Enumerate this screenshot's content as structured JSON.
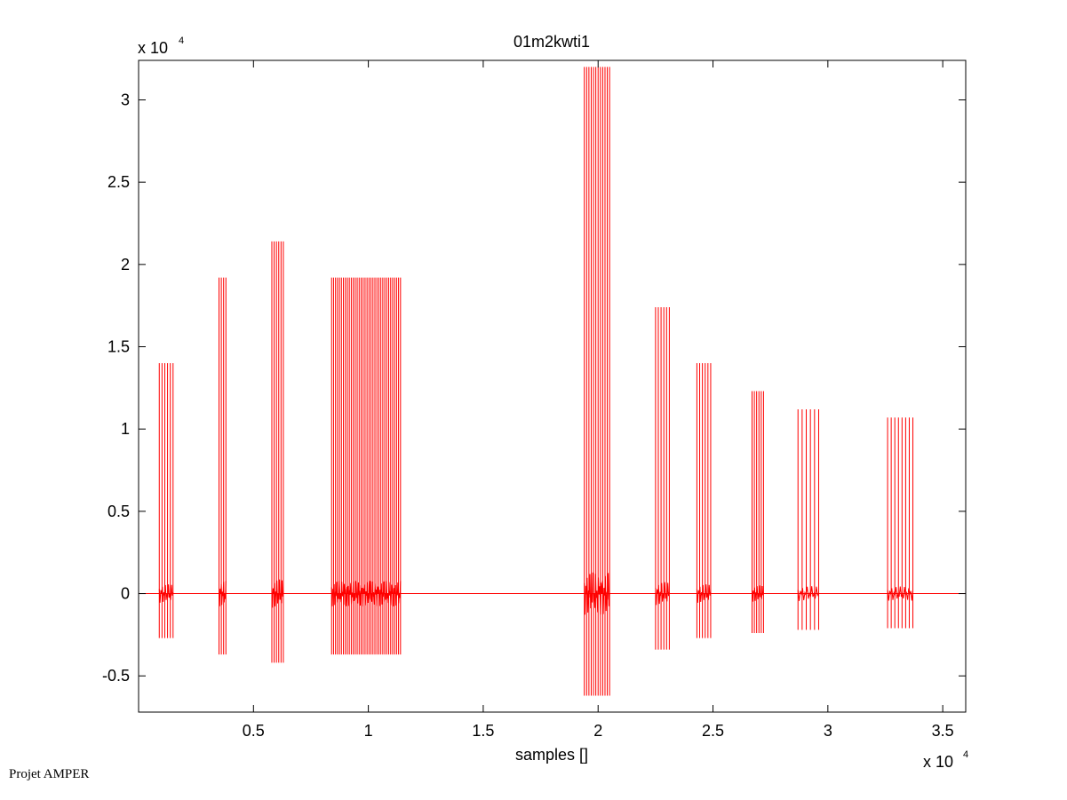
{
  "footer": "Projet AMPER",
  "chart_data": {
    "type": "line",
    "title": "01m2kwti1",
    "xlabel": "samples []",
    "ylabel": "",
    "x_exponent_label": "x 10",
    "x_exponent_power": "4",
    "y_exponent_label": "x 10",
    "y_exponent_power": "4",
    "xlim": [
      0,
      3.6
    ],
    "ylim": [
      -0.72,
      3.24
    ],
    "xticks": [
      0.5,
      1,
      1.5,
      2,
      2.5,
      3,
      3.5
    ],
    "xtick_labels": [
      "0.5",
      "1",
      "1.5",
      "2",
      "2.5",
      "3",
      "3.5"
    ],
    "yticks": [
      -0.5,
      0,
      0.5,
      1,
      1.5,
      2,
      2.5,
      3
    ],
    "ytick_labels": [
      "-0.5",
      "0",
      "0.5",
      "1",
      "1.5",
      "2",
      "2.5",
      "3"
    ],
    "grid": false,
    "line_color": "#ff0000",
    "baseline": 0,
    "groups": [
      {
        "xs": [
          0.09,
          0.15
        ],
        "n": 6,
        "hi": 1.4,
        "lo": -0.27
      },
      {
        "xs": [
          0.35,
          0.38
        ],
        "n": 4,
        "hi": 1.92,
        "lo": -0.37
      },
      {
        "xs": [
          0.58,
          0.63
        ],
        "n": 6,
        "hi": 2.14,
        "lo": -0.42
      },
      {
        "xs": [
          0.84,
          1.14
        ],
        "n": 36,
        "hi": 1.92,
        "lo": -0.37
      },
      {
        "xs": [
          1.94,
          2.05
        ],
        "n": 12,
        "hi": 3.2,
        "lo": -0.62
      },
      {
        "xs": [
          2.25,
          2.31
        ],
        "n": 6,
        "hi": 1.74,
        "lo": -0.34
      },
      {
        "xs": [
          2.43,
          2.49
        ],
        "n": 6,
        "hi": 1.4,
        "lo": -0.27
      },
      {
        "xs": [
          2.67,
          2.72
        ],
        "n": 6,
        "hi": 1.23,
        "lo": -0.24
      },
      {
        "xs": [
          2.87,
          2.96
        ],
        "n": 6,
        "hi": 1.12,
        "lo": -0.22
      },
      {
        "xs": [
          3.26,
          3.37
        ],
        "n": 8,
        "hi": 1.07,
        "lo": -0.21
      }
    ]
  }
}
